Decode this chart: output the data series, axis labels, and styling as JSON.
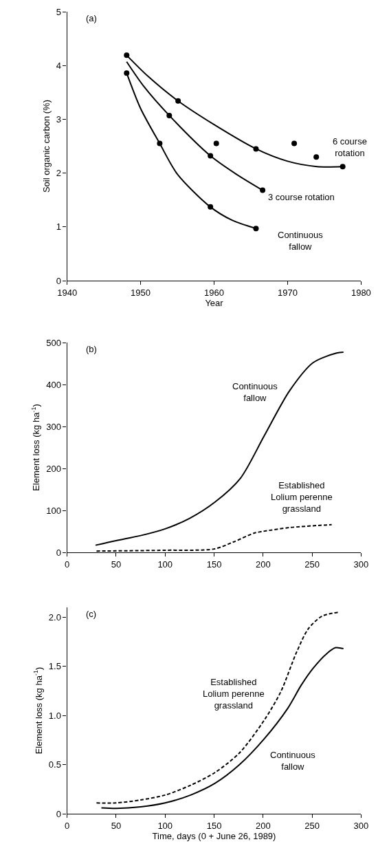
{
  "chart_data": [
    {
      "type": "line",
      "xlabel": "Year",
      "ylabel": "Soil organic carbon (%)",
      "annotations": [
        "(a)"
      ],
      "xlim": [
        1940,
        1980
      ],
      "xticks": [
        1940,
        1950,
        1960,
        1970,
        1980
      ],
      "ylim": [
        0,
        5
      ],
      "yticks": [
        0,
        1,
        2,
        3,
        4,
        5
      ],
      "series": [
        {
          "name": "6 course rotation",
          "type": "line",
          "color": "#000000",
          "line_style": "solid",
          "x": [
            1948.1,
            1951,
            1955.1,
            1960,
            1965.7,
            1970,
            1974,
            1977.5
          ],
          "values": [
            4.19,
            3.8,
            3.34,
            2.9,
            2.45,
            2.22,
            2.12,
            2.12
          ]
        },
        {
          "name": "3 course rotation",
          "type": "line",
          "color": "#000000",
          "line_style": "solid",
          "x": [
            1948.1,
            1950.5,
            1953.9,
            1959.5,
            1963,
            1966.6
          ],
          "values": [
            4.07,
            3.6,
            3.07,
            2.32,
            1.98,
            1.68
          ]
        },
        {
          "name": "Continuous fallow",
          "type": "line",
          "color": "#000000",
          "line_style": "solid",
          "x": [
            1948.1,
            1950,
            1952.6,
            1955,
            1959.5,
            1962.5,
            1965.7
          ],
          "values": [
            3.86,
            3.2,
            2.55,
            1.98,
            1.37,
            1.12,
            0.97
          ]
        },
        {
          "type": "scatter",
          "color": "#000000",
          "marker": "circle",
          "x": [
            1948.1,
            1955.1,
            1960.3,
            1965.7,
            1970.9,
            1973.9,
            1977.5
          ],
          "values": [
            4.19,
            3.34,
            2.55,
            2.45,
            2.55,
            2.3,
            2.12
          ]
        },
        {
          "type": "scatter",
          "color": "#000000",
          "marker": "circle",
          "x": [
            1953.9,
            1959.5,
            1966.6
          ],
          "values": [
            3.07,
            2.32,
            1.68
          ]
        },
        {
          "type": "scatter",
          "color": "#000000",
          "marker": "circle",
          "x": [
            1948.1,
            1952.6,
            1959.5,
            1965.7
          ],
          "values": [
            3.86,
            2.55,
            1.37,
            0.97
          ]
        }
      ]
    },
    {
      "type": "line",
      "ylabel": "Element loss (kg ha$^{-1}$)",
      "annotations": [
        "(b)"
      ],
      "xlim": [
        0,
        300
      ],
      "xticks": [
        0,
        50,
        100,
        150,
        200,
        250,
        300
      ],
      "ylim": [
        0,
        500
      ],
      "yticks": [
        0,
        100,
        200,
        300,
        400,
        500
      ],
      "series": [
        {
          "name": "Continuous fallow",
          "type": "line",
          "color": "#000000",
          "line_style": "solid",
          "x": [
            29,
            50,
            75,
            100,
            125,
            151,
            177,
            201,
            227,
            251,
            275,
            282
          ],
          "values": [
            17,
            28,
            40,
            56,
            81,
            120,
            177,
            277,
            385,
            452,
            475,
            477
          ]
        },
        {
          "name": "Established Lolium perenne grassland",
          "type": "line",
          "color": "#000000",
          "line_style": "dashed",
          "x": [
            30,
            100,
            150,
            170,
            191,
            200,
            227,
            270
          ],
          "values": [
            3,
            5,
            8,
            25,
            46,
            50,
            59,
            66
          ]
        }
      ]
    },
    {
      "type": "line",
      "xlabel": "Time, days (0 + June 26, 1989)",
      "ylabel": "Element loss (kg ha$^{-1}$)",
      "annotations": [
        "(c)"
      ],
      "xlim": [
        0,
        300
      ],
      "xticks": [
        0,
        50,
        100,
        150,
        200,
        250,
        300
      ],
      "ylim": [
        0,
        2.1
      ],
      "yticks": [
        0,
        {
          "value": 0.5,
          "label": "0.5"
        },
        {
          "value": 1,
          "label": "1.0"
        },
        {
          "value": 1.5,
          "label": "1.5"
        },
        {
          "value": 2,
          "label": "2.0"
        }
      ],
      "series": [
        {
          "name": "Established Lolium perenne grassland",
          "type": "line",
          "color": "#000000",
          "line_style": "dashed",
          "x": [
            30,
            50,
            75,
            100,
            126,
            151,
            176,
            201,
            218,
            234,
            246,
            260,
            277
          ],
          "values": [
            0.11,
            0.11,
            0.14,
            0.19,
            0.29,
            0.42,
            0.62,
            0.95,
            1.24,
            1.64,
            1.88,
            2.01,
            2.05
          ]
        },
        {
          "name": "Continuous fallow",
          "type": "line",
          "color": "#000000",
          "line_style": "solid",
          "x": [
            35,
            50,
            75,
            100,
            126,
            151,
            176,
            201,
            225,
            239,
            251,
            265,
            274,
            282
          ],
          "values": [
            0.06,
            0.055,
            0.07,
            0.11,
            0.19,
            0.31,
            0.5,
            0.76,
            1.07,
            1.31,
            1.48,
            1.63,
            1.69,
            1.68
          ]
        }
      ]
    }
  ]
}
